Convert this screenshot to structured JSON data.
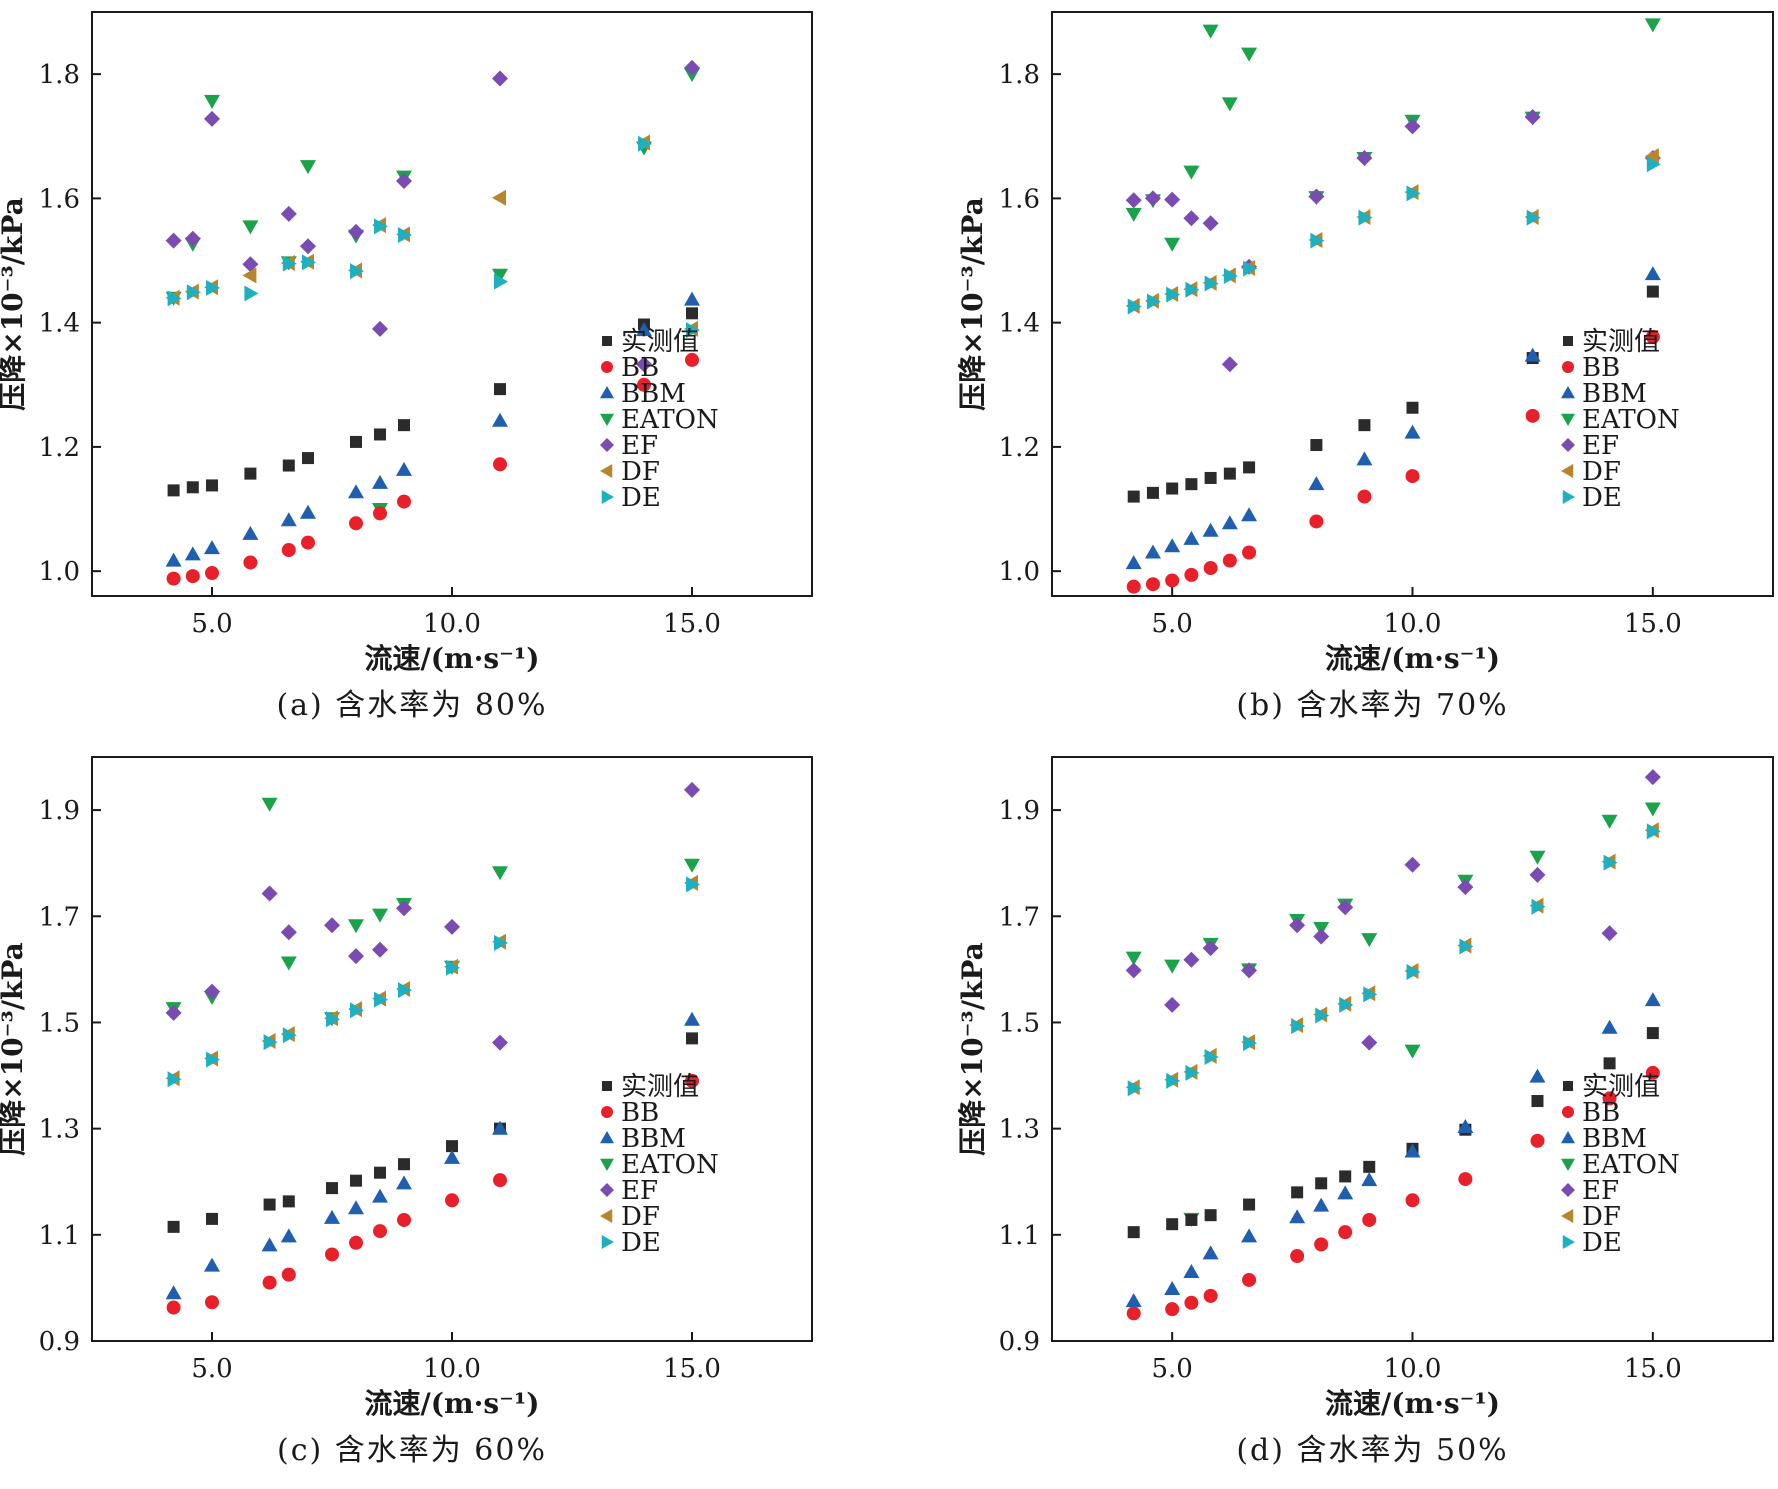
{
  "figure": {
    "marker_colors": {
      "实测值": "#2b2b2b",
      "BB": "#e8202a",
      "BBM": "#1f5fae",
      "EATON": "#1aa34a",
      "EF": "#7a4bb0",
      "DF": "#b8842c",
      "DE": "#1eb0c0"
    },
    "marker_shapes": {
      "实测值": "square",
      "BB": "circle",
      "BBM": "triangle-up",
      "EATON": "triangle-down",
      "EF": "diamond",
      "DF": "triangle-left",
      "DE": "triangle-right"
    }
  },
  "chart_data": [
    {
      "type": "scatter",
      "title": "",
      "caption": "(a) 含水率为 80%",
      "xlabel": "流速/(m·s⁻¹)",
      "ylabel": "压降×10⁻³/kPa",
      "xlim": [
        2.5,
        17.5
      ],
      "ylim": [
        0.96,
        1.9
      ],
      "xticks": [
        "5.0",
        "10.0",
        "15.0"
      ],
      "yticks": [
        "1.0",
        "1.2",
        "1.4",
        "1.6",
        "1.8"
      ],
      "legend": "right",
      "series": [
        {
          "name": "实测值",
          "x": [
            4.2,
            4.6,
            5.0,
            5.8,
            6.6,
            7.0,
            8.0,
            8.5,
            9.0,
            11.0,
            14.0,
            15.0
          ],
          "y": [
            1.13,
            1.135,
            1.138,
            1.157,
            1.17,
            1.182,
            1.208,
            1.22,
            1.235,
            1.293,
            1.397,
            1.415
          ]
        },
        {
          "name": "BB",
          "x": [
            4.2,
            4.6,
            5.0,
            5.8,
            6.6,
            7.0,
            8.0,
            8.5,
            9.0,
            11.0,
            14.0,
            15.0
          ],
          "y": [
            0.988,
            0.992,
            0.997,
            1.014,
            1.034,
            1.046,
            1.077,
            1.093,
            1.112,
            1.172,
            1.3,
            1.34
          ]
        },
        {
          "name": "BBM",
          "x": [
            4.2,
            4.6,
            5.0,
            5.8,
            6.6,
            7.0,
            8.0,
            8.5,
            9.0,
            11.0,
            14.0,
            15.0
          ],
          "y": [
            1.017,
            1.027,
            1.037,
            1.06,
            1.082,
            1.094,
            1.127,
            1.142,
            1.163,
            1.242,
            1.388,
            1.437
          ]
        },
        {
          "name": "EATON",
          "x": [
            4.2,
            4.6,
            5.0,
            5.8,
            6.6,
            7.0,
            8.0,
            8.5,
            9.0,
            11.0,
            14.0,
            15.0
          ],
          "y": [
            1.44,
            1.527,
            1.757,
            1.555,
            1.497,
            1.652,
            1.54,
            1.1,
            1.635,
            1.477,
            1.682,
            1.8
          ]
        },
        {
          "name": "EF",
          "x": [
            4.2,
            4.6,
            5.0,
            5.8,
            6.6,
            7.0,
            8.0,
            8.5,
            9.0,
            11.0,
            14.0,
            15.0
          ],
          "y": [
            1.532,
            1.535,
            1.728,
            1.494,
            1.575,
            1.523,
            1.546,
            1.39,
            1.628,
            1.793,
            1.333,
            1.81
          ]
        },
        {
          "name": "DF",
          "x": [
            4.2,
            4.6,
            5.0,
            5.8,
            6.6,
            7.0,
            8.0,
            8.5,
            9.0,
            11.0,
            14.0,
            15.0
          ],
          "y": [
            1.44,
            1.45,
            1.457,
            1.476,
            1.496,
            1.498,
            1.484,
            1.557,
            1.542,
            1.601,
            1.69,
            1.39
          ]
        },
        {
          "name": "DE",
          "x": [
            4.2,
            4.6,
            5.0,
            5.8,
            6.6,
            7.0,
            8.0,
            8.5,
            9.0,
            11.0,
            14.0,
            15.0
          ],
          "y": [
            1.439,
            1.449,
            1.456,
            1.447,
            1.495,
            1.497,
            1.483,
            1.555,
            1.541,
            1.466,
            1.688,
            1.388
          ]
        }
      ]
    },
    {
      "type": "scatter",
      "title": "",
      "caption": "(b) 含水率为 70%",
      "xlabel": "流速/(m·s⁻¹)",
      "ylabel": "压降×10⁻³/kPa",
      "xlim": [
        2.5,
        17.5
      ],
      "ylim": [
        0.96,
        1.9
      ],
      "xticks": [
        "5.0",
        "10.0",
        "15.0"
      ],
      "yticks": [
        "1.0",
        "1.2",
        "1.4",
        "1.6",
        "1.8"
      ],
      "legend": "right",
      "series": [
        {
          "name": "实测值",
          "x": [
            4.2,
            4.6,
            5.0,
            5.4,
            5.8,
            6.2,
            6.6,
            8.0,
            9.0,
            10.0,
            12.5,
            15.0
          ],
          "y": [
            1.12,
            1.126,
            1.133,
            1.14,
            1.15,
            1.157,
            1.167,
            1.203,
            1.235,
            1.263,
            1.343,
            1.45
          ]
        },
        {
          "name": "BB",
          "x": [
            4.2,
            4.6,
            5.0,
            5.4,
            5.8,
            6.2,
            6.6,
            8.0,
            9.0,
            10.0,
            12.5,
            15.0
          ],
          "y": [
            0.975,
            0.979,
            0.985,
            0.994,
            1.005,
            1.017,
            1.03,
            1.08,
            1.12,
            1.153,
            1.25,
            1.377
          ]
        },
        {
          "name": "BBM",
          "x": [
            4.2,
            4.6,
            5.0,
            5.4,
            5.8,
            6.2,
            6.6,
            8.0,
            9.0,
            10.0,
            12.5,
            15.0
          ],
          "y": [
            1.013,
            1.03,
            1.04,
            1.052,
            1.065,
            1.077,
            1.09,
            1.14,
            1.18,
            1.223,
            1.347,
            1.478
          ]
        },
        {
          "name": "EATON",
          "x": [
            4.2,
            4.6,
            5.0,
            5.4,
            5.8,
            6.2,
            6.6,
            8.0,
            9.0,
            10.0,
            12.5,
            15.0
          ],
          "y": [
            1.575,
            1.597,
            1.527,
            1.643,
            1.87,
            1.753,
            1.833,
            1.602,
            1.665,
            1.725,
            1.73,
            1.88
          ]
        },
        {
          "name": "EF",
          "x": [
            4.2,
            4.6,
            5.0,
            5.4,
            5.8,
            6.2,
            6.6,
            8.0,
            9.0,
            10.0,
            12.5,
            15.0
          ],
          "y": [
            1.597,
            1.6,
            1.598,
            1.568,
            1.56,
            1.333,
            1.49,
            1.603,
            1.665,
            1.716,
            1.731,
            1.665
          ]
        },
        {
          "name": "DF",
          "x": [
            4.2,
            4.6,
            5.0,
            5.4,
            5.8,
            6.2,
            6.6,
            8.0,
            9.0,
            10.0,
            12.5,
            15.0
          ],
          "y": [
            1.427,
            1.435,
            1.446,
            1.454,
            1.464,
            1.476,
            1.488,
            1.533,
            1.57,
            1.61,
            1.57,
            1.668
          ]
        },
        {
          "name": "DE",
          "x": [
            4.2,
            4.6,
            5.0,
            5.4,
            5.8,
            6.2,
            6.6,
            8.0,
            9.0,
            10.0,
            12.5,
            15.0
          ],
          "y": [
            1.426,
            1.434,
            1.445,
            1.453,
            1.463,
            1.475,
            1.487,
            1.532,
            1.569,
            1.608,
            1.569,
            1.655
          ]
        }
      ]
    },
    {
      "type": "scatter",
      "title": "",
      "caption": "(c) 含水率为 60%",
      "xlabel": "流速/(m·s⁻¹)",
      "ylabel": "压降×10⁻³/kPa",
      "xlim": [
        2.5,
        17.5
      ],
      "ylim": [
        0.9,
        2.0
      ],
      "xticks": [
        "5.0",
        "10.0",
        "15.0"
      ],
      "yticks": [
        "0.9",
        "1.1",
        "1.3",
        "1.5",
        "1.7",
        "1.9"
      ],
      "legend": "right",
      "series": [
        {
          "name": "实测值",
          "x": [
            4.2,
            5.0,
            6.2,
            6.6,
            7.5,
            8.0,
            8.5,
            9.0,
            10.0,
            11.0,
            15.0
          ],
          "y": [
            1.115,
            1.13,
            1.157,
            1.163,
            1.188,
            1.202,
            1.217,
            1.233,
            1.267,
            1.3,
            1.47
          ]
        },
        {
          "name": "BB",
          "x": [
            4.2,
            5.0,
            6.2,
            6.6,
            7.5,
            8.0,
            8.5,
            9.0,
            10.0,
            11.0,
            15.0
          ],
          "y": [
            0.963,
            0.973,
            1.01,
            1.025,
            1.063,
            1.085,
            1.107,
            1.128,
            1.165,
            1.203,
            1.39
          ]
        },
        {
          "name": "BBM",
          "x": [
            4.2,
            5.0,
            6.2,
            6.6,
            7.5,
            8.0,
            8.5,
            9.0,
            10.0,
            11.0,
            15.0
          ],
          "y": [
            0.99,
            1.042,
            1.08,
            1.097,
            1.132,
            1.15,
            1.172,
            1.197,
            1.245,
            1.3,
            1.505
          ]
        },
        {
          "name": "EATON",
          "x": [
            4.2,
            5.0,
            6.2,
            6.6,
            7.5,
            8.0,
            8.5,
            9.0,
            10.0,
            11.0,
            15.0
          ],
          "y": [
            1.527,
            1.548,
            1.912,
            1.613,
            1.508,
            1.683,
            1.703,
            1.723,
            1.605,
            1.783,
            1.797
          ]
        },
        {
          "name": "EF",
          "x": [
            4.2,
            5.0,
            6.2,
            6.6,
            7.5,
            8.0,
            8.5,
            9.0,
            10.0,
            11.0,
            15.0
          ],
          "y": [
            1.518,
            1.558,
            1.743,
            1.67,
            1.683,
            1.625,
            1.637,
            1.715,
            1.68,
            1.462,
            1.938
          ]
        },
        {
          "name": "DF",
          "x": [
            4.2,
            5.0,
            6.2,
            6.6,
            7.5,
            8.0,
            8.5,
            9.0,
            10.0,
            11.0,
            15.0
          ],
          "y": [
            1.395,
            1.432,
            1.465,
            1.478,
            1.508,
            1.525,
            1.545,
            1.563,
            1.605,
            1.652,
            1.763
          ]
        },
        {
          "name": "DE",
          "x": [
            4.2,
            5.0,
            6.2,
            6.6,
            7.5,
            8.0,
            8.5,
            9.0,
            10.0,
            11.0,
            15.0
          ],
          "y": [
            1.393,
            1.43,
            1.463,
            1.476,
            1.506,
            1.523,
            1.543,
            1.561,
            1.603,
            1.65,
            1.76
          ]
        }
      ]
    },
    {
      "type": "scatter",
      "title": "",
      "caption": "(d) 含水率为 50%",
      "xlabel": "流速/(m·s⁻¹)",
      "ylabel": "压降×10⁻³/kPa",
      "xlim": [
        2.5,
        17.5
      ],
      "ylim": [
        0.9,
        2.0
      ],
      "xticks": [
        "5.0",
        "10.0",
        "15.0"
      ],
      "yticks": [
        "0.9",
        "1.1",
        "1.3",
        "1.5",
        "1.7",
        "1.9"
      ],
      "legend": "right",
      "series": [
        {
          "name": "实测值",
          "x": [
            4.2,
            5.0,
            5.4,
            5.8,
            6.6,
            7.6,
            8.1,
            8.6,
            9.1,
            10.0,
            11.1,
            12.6,
            14.1,
            15.0
          ],
          "y": [
            1.105,
            1.12,
            1.128,
            1.137,
            1.157,
            1.18,
            1.197,
            1.21,
            1.228,
            1.262,
            1.298,
            1.352,
            1.423,
            1.48
          ]
        },
        {
          "name": "BB",
          "x": [
            4.2,
            5.0,
            5.4,
            5.8,
            6.6,
            7.6,
            8.1,
            8.6,
            9.1,
            10.0,
            11.1,
            12.6,
            14.1,
            15.0
          ],
          "y": [
            0.952,
            0.96,
            0.972,
            0.985,
            1.015,
            1.06,
            1.082,
            1.105,
            1.128,
            1.165,
            1.205,
            1.277,
            1.357,
            1.405
          ]
        },
        {
          "name": "BBM",
          "x": [
            4.2,
            5.0,
            5.4,
            5.8,
            6.6,
            7.6,
            8.1,
            8.6,
            9.1,
            10.0,
            11.1,
            12.6,
            14.1,
            15.0
          ],
          "y": [
            0.975,
            0.998,
            1.03,
            1.065,
            1.097,
            1.133,
            1.155,
            1.178,
            1.203,
            1.257,
            1.303,
            1.398,
            1.49,
            1.542
          ]
        },
        {
          "name": "EATON",
          "x": [
            4.2,
            5.0,
            5.4,
            5.8,
            6.6,
            7.6,
            8.1,
            8.6,
            9.1,
            10.0,
            11.1,
            12.6,
            14.1,
            15.0
          ],
          "y": [
            1.622,
            1.607,
            1.13,
            1.648,
            1.6,
            1.693,
            1.678,
            1.722,
            1.657,
            1.447,
            1.767,
            1.812,
            1.88,
            1.903
          ]
        },
        {
          "name": "EF",
          "x": [
            4.2,
            5.0,
            5.4,
            5.8,
            6.6,
            7.6,
            8.1,
            8.6,
            9.1,
            10.0,
            11.1,
            12.6,
            14.1,
            15.0
          ],
          "y": [
            1.598,
            1.533,
            1.618,
            1.64,
            1.598,
            1.683,
            1.662,
            1.717,
            1.462,
            1.797,
            1.755,
            1.778,
            1.668,
            1.962
          ]
        },
        {
          "name": "DF",
          "x": [
            4.2,
            5.0,
            5.4,
            5.8,
            6.6,
            7.6,
            8.1,
            8.6,
            9.1,
            10.0,
            11.1,
            12.6,
            14.1,
            15.0
          ],
          "y": [
            1.378,
            1.392,
            1.407,
            1.437,
            1.463,
            1.495,
            1.515,
            1.535,
            1.555,
            1.597,
            1.645,
            1.72,
            1.803,
            1.862
          ]
        },
        {
          "name": "DE",
          "x": [
            4.2,
            5.0,
            5.4,
            5.8,
            6.6,
            7.6,
            8.1,
            8.6,
            9.1,
            10.0,
            11.1,
            12.6,
            14.1,
            15.0
          ],
          "y": [
            1.376,
            1.39,
            1.405,
            1.435,
            1.461,
            1.493,
            1.513,
            1.533,
            1.553,
            1.595,
            1.643,
            1.718,
            1.801,
            1.86
          ]
        }
      ]
    }
  ]
}
